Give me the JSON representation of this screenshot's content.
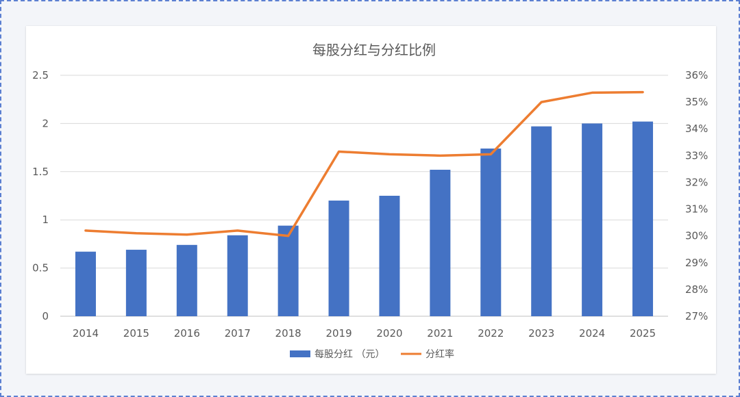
{
  "chart_data": {
    "type": "bar",
    "title": "每股分红与分红比例",
    "categories": [
      "2014",
      "2015",
      "2016",
      "2017",
      "2018",
      "2019",
      "2020",
      "2021",
      "2022",
      "2023",
      "2024",
      "2025"
    ],
    "series": [
      {
        "name": "每股分红 （元）",
        "type": "bar",
        "axis": "left",
        "color": "#4472c4",
        "values": [
          0.67,
          0.69,
          0.74,
          0.84,
          0.94,
          1.2,
          1.25,
          1.52,
          1.74,
          1.97,
          2.0,
          2.02
        ]
      },
      {
        "name": "分红率",
        "type": "line",
        "axis": "right",
        "color": "#ed7d31",
        "values": [
          30.2,
          30.1,
          30.05,
          30.2,
          30.0,
          33.15,
          33.05,
          33.0,
          33.05,
          35.0,
          35.35,
          35.37
        ]
      }
    ],
    "y_left": {
      "ylim": [
        0,
        2.5
      ],
      "ticks": [
        "0",
        "0.5",
        "1",
        "1.5",
        "2",
        "2.5"
      ]
    },
    "y_right": {
      "ylim": [
        27,
        36
      ],
      "ticks": [
        "27%",
        "28%",
        "29%",
        "30%",
        "31%",
        "32%",
        "33%",
        "34%",
        "35%",
        "36%"
      ]
    },
    "grid": true,
    "legend_position": "bottom"
  }
}
